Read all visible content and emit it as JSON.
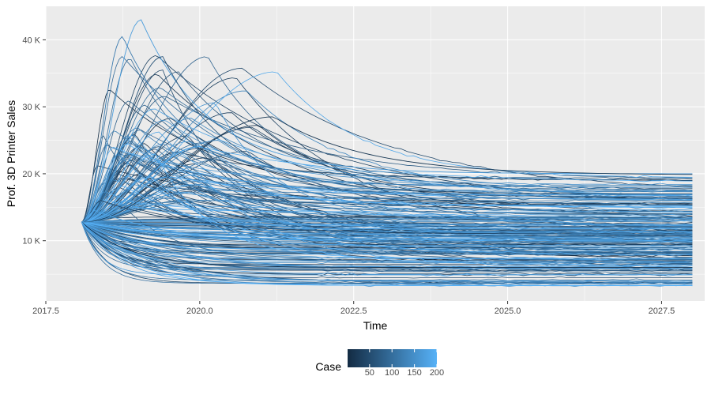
{
  "chart_data": {
    "type": "line",
    "title": "",
    "xlabel": "Time",
    "ylabel": "Prof. 3D Printer Sales",
    "xlim": [
      2017.5,
      2028.2
    ],
    "ylim": [
      1000,
      45000
    ],
    "x_ticks": [
      2017.5,
      2020.0,
      2022.5,
      2025.0,
      2027.5
    ],
    "x_tick_labels": [
      "2017.5",
      "2020.0",
      "2022.5",
      "2025.0",
      "2027.5"
    ],
    "y_ticks": [
      10000,
      20000,
      30000,
      40000
    ],
    "y_tick_labels": [
      "10 K",
      "20 K",
      "30 K",
      "40 K"
    ],
    "grid": true,
    "panel_background": "#EBEBEB",
    "legend": {
      "title": "Case",
      "position": "bottom",
      "type": "colorbar",
      "range": [
        1,
        200
      ],
      "ticks": [
        50,
        100,
        150,
        200
      ],
      "tick_labels": [
        "50",
        "100",
        "150",
        "200"
      ],
      "low_color": "#132B43",
      "high_color": "#56B1F7"
    },
    "series_count": 200,
    "series_start": {
      "x": 2018.08,
      "y": 12800
    },
    "series_end_x": 2028.0,
    "representative_series": [
      {
        "case": 170,
        "peak_x": 2019.05,
        "peak_y": 43000,
        "final_y": 20000
      },
      {
        "case": 120,
        "peak_x": 2018.75,
        "peak_y": 40500,
        "final_y": 18000
      },
      {
        "case": 60,
        "peak_x": 2019.4,
        "peak_y": 37500,
        "final_y": 17000
      },
      {
        "case": 20,
        "peak_x": 2021.2,
        "peak_y": 28500,
        "final_y": 19800
      },
      {
        "case": 140,
        "peak_x": 2020.3,
        "peak_y": 25000,
        "final_y": 16000
      },
      {
        "case": 90,
        "peak_x": 2018.9,
        "peak_y": 22000,
        "final_y": 14000
      },
      {
        "case": 40,
        "peak_x": 2018.4,
        "peak_y": 16000,
        "final_y": 11000
      },
      {
        "case": 180,
        "peak_x": 2018.3,
        "peak_y": 14500,
        "final_y": 9000
      },
      {
        "case": 10,
        "peak_x": 2018.1,
        "peak_y": 12800,
        "final_y": 6000
      },
      {
        "case": 200,
        "peak_x": 2018.1,
        "peak_y": 12800,
        "final_y": 3300
      }
    ]
  }
}
